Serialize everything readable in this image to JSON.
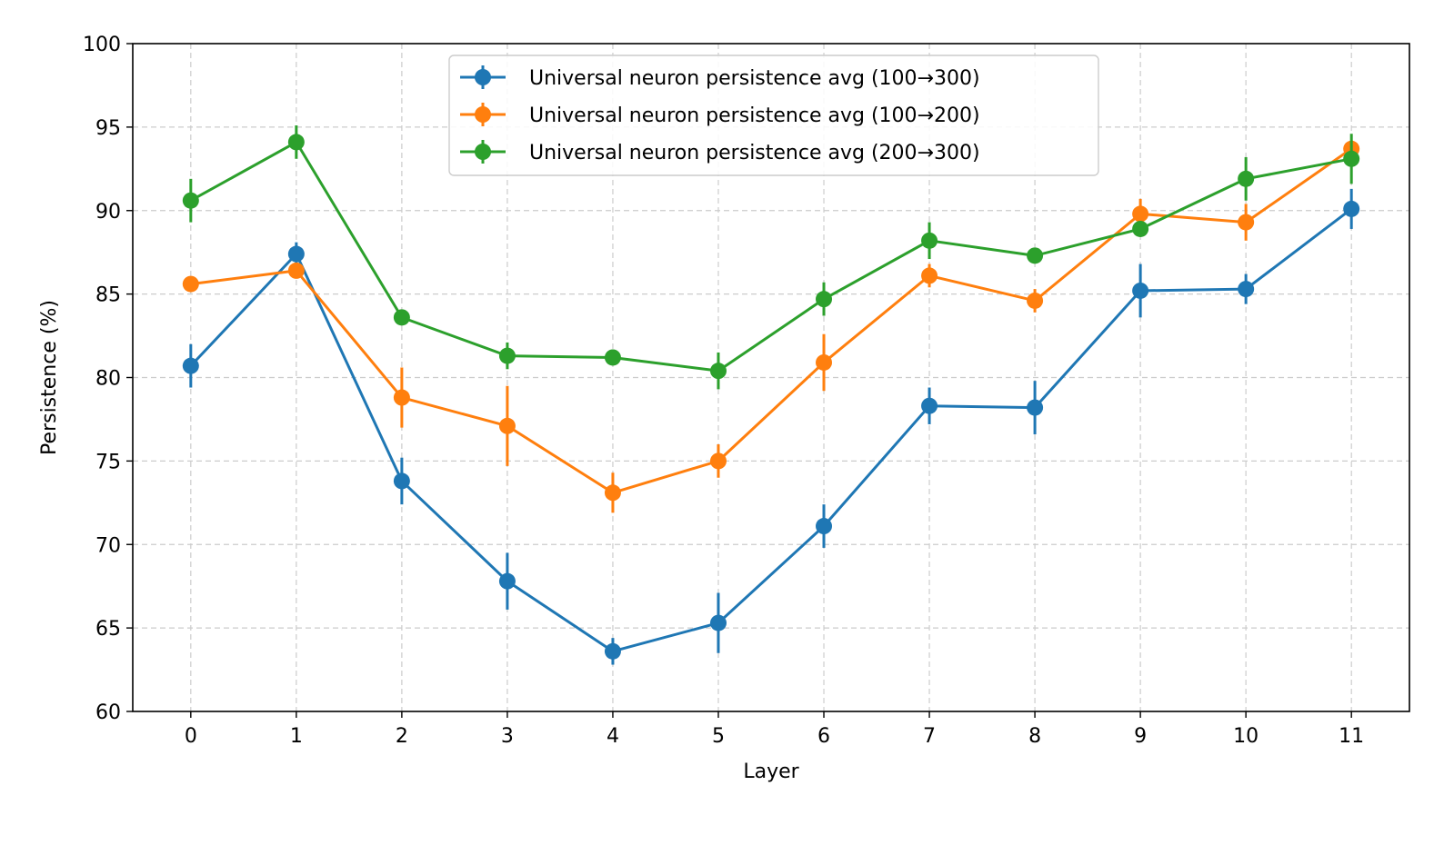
{
  "chart_data": {
    "type": "line",
    "title": "",
    "xlabel": "Layer",
    "ylabel": "Persistence (%)",
    "x": [
      0,
      1,
      2,
      3,
      4,
      5,
      6,
      7,
      8,
      9,
      10,
      11
    ],
    "x_ticks": [
      "0",
      "1",
      "2",
      "3",
      "4",
      "5",
      "6",
      "7",
      "8",
      "9",
      "10",
      "11"
    ],
    "xlim": [
      -0.55,
      11.55
    ],
    "ylim": [
      60,
      100
    ],
    "y_ticks": [
      "60",
      "65",
      "70",
      "75",
      "80",
      "85",
      "90",
      "95",
      "100"
    ],
    "grid": true,
    "legend_position": "top-center",
    "series": [
      {
        "name": "Universal neuron persistence avg (100→300)",
        "color": "#1f77b4",
        "values": [
          80.7,
          87.4,
          73.8,
          67.8,
          63.6,
          65.3,
          71.1,
          78.3,
          78.2,
          85.2,
          85.3,
          90.1
        ],
        "errors": [
          1.3,
          0.7,
          1.4,
          1.7,
          0.8,
          1.8,
          1.3,
          1.1,
          1.6,
          1.6,
          0.9,
          1.2
        ]
      },
      {
        "name": "Universal neuron persistence avg (100→200)",
        "color": "#ff7f0e",
        "values": [
          85.6,
          86.4,
          78.8,
          77.1,
          73.1,
          75.0,
          80.9,
          86.1,
          84.6,
          89.8,
          89.3,
          93.7
        ],
        "errors": [
          0.0,
          0.0,
          1.8,
          2.4,
          1.2,
          1.0,
          1.7,
          0.7,
          0.7,
          0.9,
          1.1,
          0.0
        ]
      },
      {
        "name": "Universal neuron persistence avg (200→300)",
        "color": "#2ca02c",
        "values": [
          90.6,
          94.1,
          83.6,
          81.3,
          81.2,
          80.4,
          84.7,
          88.2,
          87.3,
          88.9,
          91.9,
          93.1
        ],
        "errors": [
          1.3,
          1.0,
          0.0,
          0.8,
          0.4,
          1.1,
          1.0,
          1.1,
          0.0,
          0.0,
          1.3,
          1.5
        ]
      }
    ]
  }
}
